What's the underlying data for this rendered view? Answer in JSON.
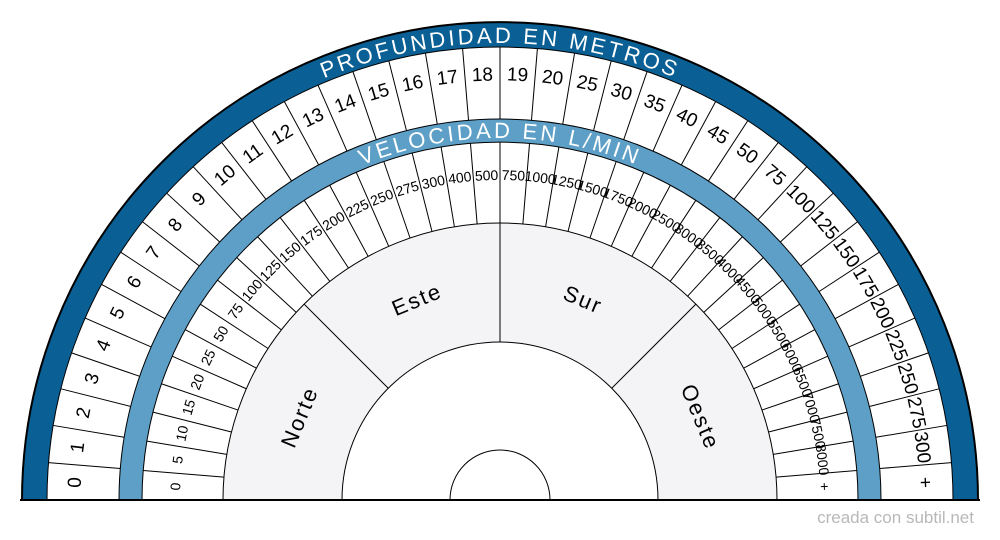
{
  "outer_title": "PROFUNDIDAD EN METROS",
  "inner_title": "VELOCIDAD EN L/MIN",
  "depth_labels": [
    "0",
    "1",
    "2",
    "3",
    "4",
    "5",
    "6",
    "7",
    "8",
    "9",
    "10",
    "11",
    "12",
    "13",
    "14",
    "15",
    "16",
    "17",
    "18",
    "19",
    "20",
    "25",
    "30",
    "35",
    "40",
    "45",
    "50",
    "75",
    "100",
    "125",
    "150",
    "175",
    "200",
    "225",
    "250",
    "275",
    "300",
    "+"
  ],
  "speed_labels": [
    "0",
    "5",
    "10",
    "15",
    "20",
    "25",
    "50",
    "75",
    "100",
    "125",
    "150",
    "175",
    "200",
    "225",
    "250",
    "275",
    "300",
    "400",
    "500",
    "750",
    "1000",
    "1250",
    "1500",
    "1750",
    "2000",
    "2500",
    "3000",
    "3500",
    "4000",
    "4500",
    "5000",
    "5500",
    "6000",
    "6500",
    "7000",
    "7500",
    "8000",
    "+"
  ],
  "directions": [
    "Norte",
    "Este",
    "Sur",
    "Oeste"
  ],
  "credit": "creada con subtil.net",
  "colors": {
    "dark_blue": "#0a5f94",
    "light_blue": "#5d9fc6",
    "sector_fill": "#f4f4f6",
    "stroke": "#000000"
  }
}
